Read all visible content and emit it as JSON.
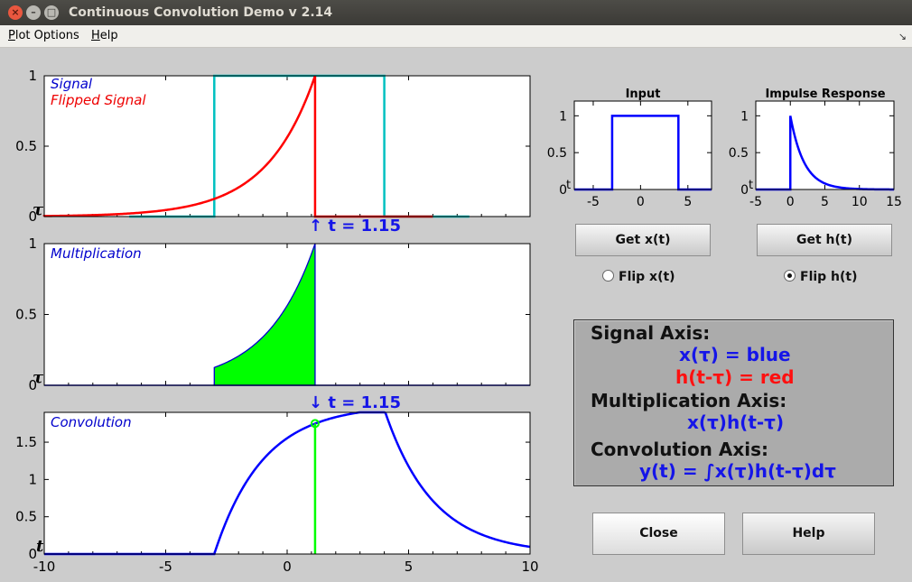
{
  "window": {
    "title": "Continuous Convolution Demo v 2.14"
  },
  "menu": {
    "items": [
      {
        "label": "Plot Options",
        "mnemonic": "P"
      },
      {
        "label": "Help",
        "mnemonic": "H"
      }
    ]
  },
  "signal_axis": {
    "tau_marker": "τ",
    "labels": [
      "Signal",
      "Flipped Signal"
    ],
    "t_readout": "↑ t = 1.15"
  },
  "multiplication_axis": {
    "tau_marker": "τ",
    "label": "Multiplication",
    "t_readout": "↓ t = 1.15"
  },
  "convolution_axis": {
    "t_marker": "t",
    "label": "Convolution"
  },
  "input_plot": {
    "title": "Input"
  },
  "impulse_plot": {
    "title": "Impulse Response",
    "t_marker": "t"
  },
  "input_plot_t_marker": "t",
  "buttons": {
    "get_x": "Get x(t)",
    "get_h": "Get h(t)",
    "close": "Close",
    "help": "Help"
  },
  "radios": {
    "flip_x": {
      "label": "Flip x(t)",
      "selected": false
    },
    "flip_h": {
      "label": "Flip h(t)",
      "selected": true
    }
  },
  "legend_box": {
    "signal_heading": "Signal Axis:",
    "x_blue": "x(τ) = blue",
    "h_red": "h(t-τ) = red",
    "mult_heading": "Multiplication Axis:",
    "mult_expr": "x(τ)h(t-τ)",
    "conv_heading": "Convolution Axis:",
    "conv_expr": "y(t) = ∫x(τ)h(t-τ)dτ"
  },
  "colors": {
    "signal": "#0000ff",
    "flipped": "#ff0000",
    "input_trace": "#00c0c0",
    "fill": "#00ff00",
    "marker": "#00ff00"
  },
  "chart_data": [
    {
      "type": "line",
      "panel": "signal",
      "xlim": [
        -10,
        10
      ],
      "ylim": [
        0,
        1
      ],
      "yticks": [
        0,
        0.5,
        1
      ],
      "series": [
        {
          "name": "Signal",
          "kind": "rect",
          "from": -3,
          "to": 4,
          "height": 1
        },
        {
          "name": "Flipped Signal",
          "kind": "flipped_exp",
          "t": 1.15,
          "decay": 0.5
        }
      ]
    },
    {
      "type": "area",
      "panel": "multiplication",
      "xlim": [
        -10,
        10
      ],
      "ylim": [
        0,
        1
      ],
      "yticks": [
        0,
        0.5,
        1
      ],
      "series": [
        {
          "name": "Multiplication",
          "from": -3,
          "to": 1.15,
          "decay": 0.5
        }
      ]
    },
    {
      "type": "line",
      "panel": "convolution",
      "xlim": [
        -10,
        10
      ],
      "ylim": [
        0,
        1.9
      ],
      "yticks": [
        0,
        0.5,
        1,
        1.5
      ],
      "xticks": [
        -10,
        -5,
        0,
        5,
        10
      ],
      "series": [
        {
          "name": "Convolution",
          "kind": "conv_rect_exp",
          "from": -3,
          "to": 4,
          "decay": 0.5
        }
      ],
      "marker": {
        "t": 1.15,
        "y": 1.75
      }
    },
    {
      "type": "line",
      "panel": "input",
      "xlim": [
        -7,
        7.5
      ],
      "ylim": [
        0,
        1.2
      ],
      "yticks": [
        0,
        0.5,
        1
      ],
      "xticks": [
        -5,
        0,
        5
      ],
      "series": [
        {
          "kind": "rect",
          "from": -3,
          "to": 4,
          "height": 1
        }
      ]
    },
    {
      "type": "line",
      "panel": "impulse",
      "xlim": [
        -5,
        15
      ],
      "ylim": [
        0,
        1.2
      ],
      "yticks": [
        0,
        0.5,
        1
      ],
      "xticks": [
        -5,
        0,
        5,
        10,
        15
      ],
      "series": [
        {
          "kind": "decay_exp",
          "from": 0,
          "decay": 0.5
        }
      ]
    }
  ]
}
